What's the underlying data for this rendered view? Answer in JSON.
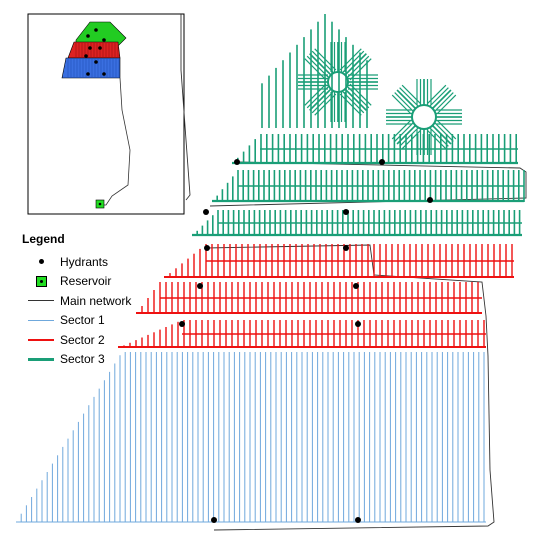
{
  "legend": {
    "title": "Legend",
    "items": [
      {
        "label": "Hydrants",
        "symbol": "dot",
        "color": "#000000"
      },
      {
        "label": "Reservoir",
        "symbol": "square",
        "color": "#22dd22"
      },
      {
        "label": "Main network",
        "symbol": "line",
        "color": "#333333"
      },
      {
        "label": "Sector 1",
        "symbol": "line",
        "color": "#6fa8dc"
      },
      {
        "label": "Sector 2",
        "symbol": "line",
        "color": "#ee1111"
      },
      {
        "label": "Sector 3",
        "symbol": "line",
        "color": "#1a9e77"
      }
    ]
  },
  "colors": {
    "sector1": "#6fa8dc",
    "sector2": "#ee1111",
    "sector3": "#1a9e77",
    "main_network": "#333333",
    "hydrant": "#000000",
    "reservoir": "#22dd22"
  }
}
